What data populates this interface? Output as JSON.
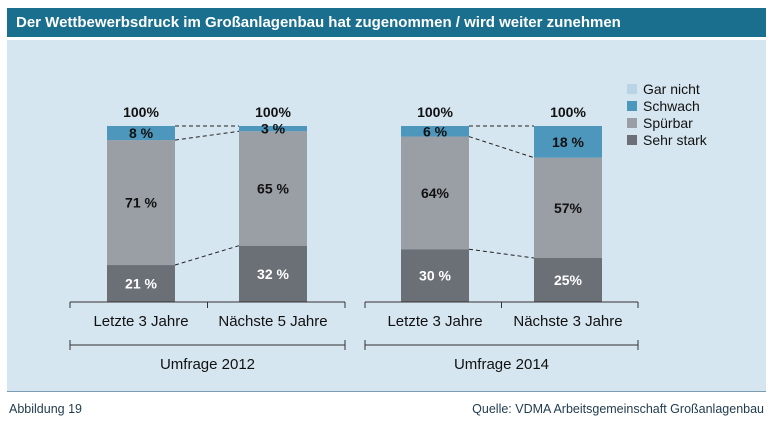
{
  "header": {
    "title": "Der Wettbewerbsdruck im Großanlagenbau hat zugenommen / wird weiter zunehmen"
  },
  "footer": {
    "figure_label": "Abbildung 19",
    "source": "Quelle: VDMA Arbeitsgemeinschaft Großanlagenbau"
  },
  "chart_data": {
    "type": "bar",
    "stacked": true,
    "groups": [
      "Umfrage 2012",
      "Umfrage 2014"
    ],
    "categories": [
      "Letzte 3 Jahre",
      "Nächste 5 Jahre",
      "Letzte 3 Jahre",
      "Nächste 3 Jahre"
    ],
    "category_group": [
      0,
      0,
      1,
      1
    ],
    "totals": [
      "100%",
      "100%",
      "100%",
      "100%"
    ],
    "series": [
      {
        "name": "Sehr stark",
        "values": [
          21,
          32,
          30,
          25
        ],
        "labels": [
          "21 %",
          "32 %",
          "30 %",
          "25%"
        ],
        "color": "#6b6f76",
        "label_color": "#ffffff"
      },
      {
        "name": "Spürbar",
        "values": [
          71,
          65,
          64,
          57
        ],
        "labels": [
          "71 %",
          "65 %",
          "64%",
          "57%"
        ],
        "color": "#9a9ea5",
        "label_color": "#111111"
      },
      {
        "name": "Schwach",
        "values": [
          8,
          3,
          6,
          18
        ],
        "labels": [
          "8 %",
          "3 %",
          "6 %",
          "18 %"
        ],
        "color": "#4e97bc",
        "label_color": "#111111"
      },
      {
        "name": "Gar nicht",
        "values": [
          0,
          0,
          0,
          0
        ],
        "labels": [
          "",
          "",
          "",
          ""
        ],
        "color": "#b9d4e6",
        "label_color": "#111111"
      }
    ],
    "legend_order": [
      "Gar nicht",
      "Schwach",
      "Spürbar",
      "Sehr stark"
    ],
    "legend_position": "top-right",
    "ylim": [
      0,
      100
    ],
    "connectors": "dashed lines between segment boundaries of paired bars",
    "grid": false
  }
}
